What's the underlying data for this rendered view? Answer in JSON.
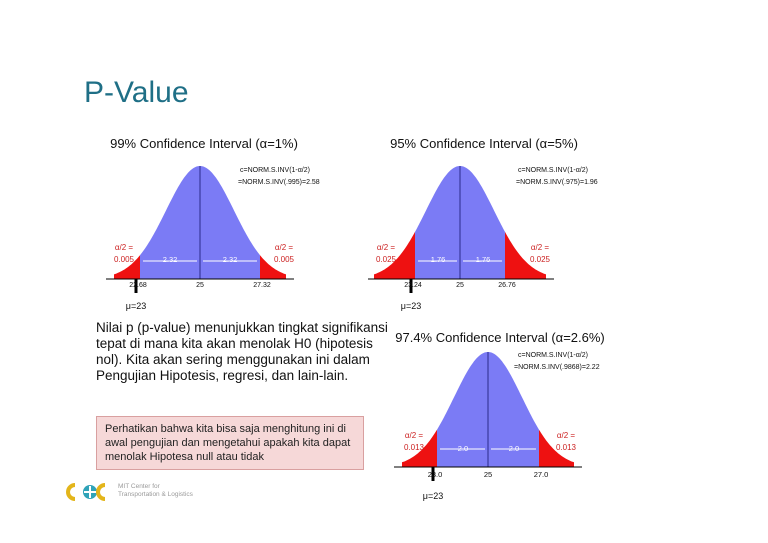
{
  "slide": {
    "title": "P-Value"
  },
  "charts": [
    {
      "title": "99% Confidence Interval (α=1%)",
      "formula_1": "c=NORM.S.INV(1-α/2)",
      "formula_2": "=NORM.S.INV(.995)=2.58",
      "alpha_left_1": "α/2 =",
      "alpha_left_2": "0.005",
      "alpha_right_1": "α/2 =",
      "alpha_right_2": "0.005",
      "half_width_left": "2.32",
      "half_width_right": "2.32",
      "tick_left": "22.68",
      "tick_center": "25",
      "tick_right": "27.32",
      "mu_label": "μ=23"
    },
    {
      "title": "95% Confidence Interval (α=5%)",
      "formula_1": "c=NORM.S.INV(1-α/2)",
      "formula_2": "=NORM.S.INV(.975)=1.96",
      "alpha_left_1": "α/2 =",
      "alpha_left_2": "0.025",
      "alpha_right_1": "α/2 =",
      "alpha_right_2": "0.025",
      "half_width_left": "1.76",
      "half_width_right": "1.76",
      "tick_left": "23.24",
      "tick_center": "25",
      "tick_right": "26.76",
      "mu_label": "μ=23"
    },
    {
      "title": "97.4% Confidence Interval (α=2.6%)",
      "formula_1": "c=NORM.S.INV(1-α/2)",
      "formula_2": "=NORM.S.INV(.9868)=2.22",
      "alpha_left_1": "α/2 =",
      "alpha_left_2": "0.013",
      "alpha_right_1": "α/2 =",
      "alpha_right_2": "0.013",
      "half_width_left": "2.0",
      "half_width_right": "2.0",
      "tick_left": "23.0",
      "tick_center": "25",
      "tick_right": "27.0",
      "mu_label": "μ=23"
    }
  ],
  "text": {
    "paragraph": "Nilai p (p-value) menunjukkan tingkat signifikansi tepat di mana kita akan menolak H0 (hipotesis nol). Kita akan sering menggunakan ini dalam Pengujian Hipotesis, regresi, dan lain-lain.",
    "note": "Perhatikan bahwa kita bisa saja menghitung ini di awal pengujian dan mengetahui apakah kita dapat menolak Hipotesa null atau tidak"
  },
  "footer": {
    "logo_line1": "MIT Center for",
    "logo_line2": "Transportation & Logistics"
  },
  "colors": {
    "title": "#1f6f86",
    "curve_fill": "#7b7bf5",
    "tail_fill": "#ee1111",
    "alpha_text": "#cc2222",
    "note_bg": "#f6d8d8",
    "logo_yellow": "#e3b51a",
    "logo_teal": "#2fa3b8"
  }
}
